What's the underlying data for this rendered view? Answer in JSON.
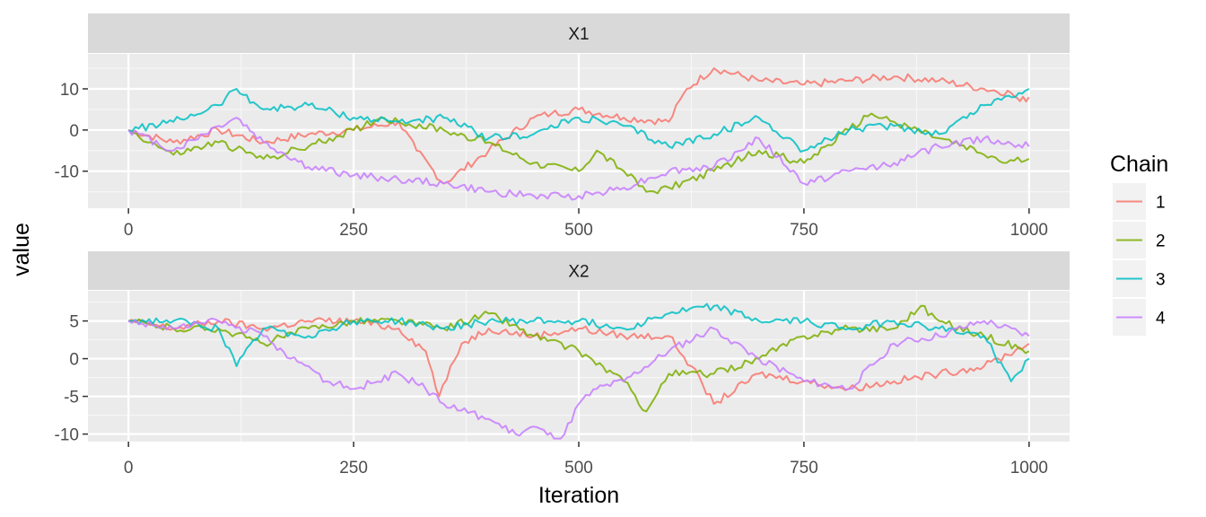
{
  "chart_data": {
    "type": "line",
    "xlabel": "Iteration",
    "ylabel": "value",
    "legend": {
      "title": "Chain",
      "placement": "right",
      "entries": [
        {
          "label": "1",
          "color": "#F8766D"
        },
        {
          "label": "2",
          "color": "#7CAE00"
        },
        {
          "label": "3",
          "color": "#00BFC4"
        },
        {
          "label": "4",
          "color": "#C77CFF"
        }
      ]
    },
    "x_ticks": [
      0,
      250,
      500,
      750,
      1000
    ],
    "xlim": [
      -45,
      1045
    ],
    "grid": true,
    "panels": [
      {
        "strip": "X1",
        "ylim": [
          -19,
          18.5
        ],
        "y_ticks": [
          -10,
          0,
          10
        ],
        "y_tick_labels": [
          "-10",
          "0",
          "10"
        ],
        "series": [
          {
            "name": "1",
            "color": "#F8766D",
            "x": [
              0,
              50,
              100,
              150,
              200,
              250,
              300,
              320,
              350,
              400,
              450,
              470,
              500,
              550,
              600,
              620,
              650,
              700,
              750,
              800,
              850,
              900,
              950,
              980,
              990,
              1000
            ],
            "values": [
              0,
              -3,
              0,
              -3,
              -1,
              0,
              2,
              -5,
              -13,
              -5,
              3,
              4,
              5,
              3,
              2,
              10,
              15,
              12,
              11,
              12,
              13,
              12,
              10,
              9,
              7,
              8
            ]
          },
          {
            "name": "2",
            "color": "#7CAE00",
            "x": [
              0,
              25,
              50,
              100,
              150,
              200,
              250,
              280,
              300,
              350,
              400,
              450,
              500,
              520,
              550,
              575,
              600,
              650,
              700,
              750,
              800,
              825,
              850,
              900,
              950,
              975,
              1000
            ],
            "values": [
              0,
              -3,
              -6,
              -3,
              -7,
              -4,
              0,
              3,
              2,
              0,
              -3,
              -8,
              -10,
              -5,
              -10,
              -15,
              -14,
              -10,
              -5,
              -8,
              0,
              4,
              2,
              -2,
              -6,
              -8,
              -7
            ]
          },
          {
            "name": "3",
            "color": "#00BFC4",
            "x": [
              0,
              50,
              100,
              120,
              150,
              200,
              250,
              300,
              350,
              400,
              450,
              500,
              550,
              600,
              650,
              700,
              750,
              800,
              850,
              900,
              950,
              1000
            ],
            "values": [
              0,
              2,
              6,
              10,
              5,
              6,
              3,
              2,
              3,
              -2,
              -1,
              3,
              1,
              -4,
              -1,
              3,
              -5,
              0,
              1,
              -1,
              6,
              10
            ]
          },
          {
            "name": "4",
            "color": "#C77CFF",
            "x": [
              0,
              50,
              100,
              120,
              150,
              200,
              250,
              300,
              350,
              400,
              450,
              500,
              550,
              600,
              650,
              700,
              750,
              800,
              850,
              900,
              950,
              1000
            ],
            "values": [
              0,
              -5,
              1,
              3,
              -3,
              -9,
              -11,
              -12,
              -13,
              -15,
              -16,
              -16,
              -14,
              -10,
              -9,
              -2,
              -13,
              -10,
              -8,
              -4,
              -2,
              -4
            ]
          }
        ]
      },
      {
        "strip": "X2",
        "ylim": [
          -11,
          9
        ],
        "y_ticks": [
          -10,
          -5,
          0,
          5
        ],
        "y_tick_labels": [
          "-10",
          "-5",
          "0",
          "5"
        ],
        "series": [
          {
            "name": "1",
            "color": "#F8766D",
            "x": [
              0,
              50,
              100,
              150,
              200,
              250,
              300,
              330,
              345,
              370,
              400,
              450,
              500,
              550,
              600,
              625,
              650,
              700,
              750,
              800,
              850,
              900,
              950,
              1000
            ],
            "values": [
              5,
              4,
              5,
              4,
              5,
              5,
              4,
              1,
              -5,
              2,
              4,
              3,
              4,
              3,
              3,
              -1,
              -6,
              -2,
              -3,
              -4,
              -3,
              -2,
              -1,
              2
            ]
          },
          {
            "name": "2",
            "color": "#7CAE00",
            "x": [
              0,
              50,
              100,
              150,
              200,
              250,
              300,
              350,
              400,
              450,
              500,
              550,
              575,
              600,
              650,
              700,
              750,
              800,
              850,
              880,
              900,
              950,
              1000
            ],
            "values": [
              5,
              4,
              4,
              2,
              4,
              5,
              5,
              4,
              6,
              3,
              1,
              -3,
              -7,
              -2,
              -2,
              0,
              3,
              4,
              4,
              7,
              5,
              3,
              1
            ]
          },
          {
            "name": "3",
            "color": "#00BFC4",
            "x": [
              0,
              50,
              100,
              120,
              150,
              200,
              250,
              300,
              350,
              400,
              450,
              500,
              550,
              600,
              650,
              700,
              750,
              800,
              850,
              900,
              950,
              980,
              1000
            ],
            "values": [
              5,
              5,
              4,
              -1,
              4,
              3,
              5,
              5,
              4,
              5,
              5,
              5,
              4,
              6,
              7,
              5,
              5,
              4,
              5,
              4,
              3,
              -3,
              0
            ]
          },
          {
            "name": "4",
            "color": "#C77CFF",
            "x": [
              0,
              50,
              100,
              150,
              180,
              200,
              220,
              250,
              300,
              330,
              350,
              400,
              430,
              450,
              480,
              500,
              520,
              550,
              600,
              650,
              700,
              750,
              800,
              850,
              900,
              950,
              1000
            ],
            "values": [
              5,
              4,
              5,
              3,
              0,
              -1,
              -3,
              -4,
              -2,
              -4,
              -6,
              -8,
              -10,
              -9,
              -11,
              -6,
              -4,
              -3,
              1,
              4,
              0,
              -3,
              -4,
              2,
              3,
              5,
              3
            ]
          }
        ]
      }
    ]
  }
}
